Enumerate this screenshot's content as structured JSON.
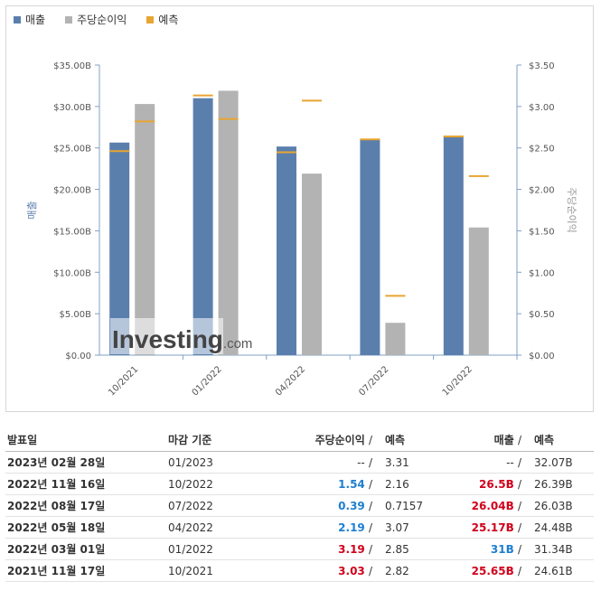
{
  "legend": {
    "revenue": "매출",
    "eps": "주당순이익",
    "forecast": "예측"
  },
  "colors": {
    "revenue": "#5b7fad",
    "eps": "#b3b3b3",
    "forecast": "#e8a531",
    "up": "#1e7fd0",
    "down": "#d0021b"
  },
  "chart_data": {
    "type": "bar",
    "categories": [
      "10/2021",
      "01/2022",
      "04/2022",
      "07/2022",
      "10/2022"
    ],
    "series": [
      {
        "name": "매출",
        "axis": "left",
        "values": [
          25.65,
          31.0,
          25.17,
          26.04,
          26.5
        ]
      },
      {
        "name": "주당순이익",
        "axis": "right",
        "values": [
          3.03,
          3.19,
          2.19,
          0.39,
          1.54
        ]
      }
    ],
    "forecast": {
      "name": "예측",
      "revenue": [
        24.61,
        31.34,
        24.48,
        26.03,
        26.39
      ],
      "eps": [
        2.82,
        2.85,
        3.07,
        0.7157,
        2.16
      ]
    },
    "left_axis": {
      "label": "매출",
      "ylim": [
        0,
        35
      ],
      "ticks": [
        "$0.00",
        "$5.00B",
        "$10.00B",
        "$15.00B",
        "$20.00B",
        "$25.00B",
        "$30.00B",
        "$35.00B"
      ]
    },
    "right_axis": {
      "label": "주당순이익",
      "ylim": [
        0,
        3.5
      ],
      "ticks": [
        "$0.00",
        "$0.50",
        "$1.00",
        "$1.50",
        "$2.00",
        "$2.50",
        "$3.00",
        "$3.50"
      ]
    },
    "watermark": "Investing.com"
  },
  "table": {
    "headers": {
      "date": "발표일",
      "period": "마감 기준",
      "eps": "주당순이익",
      "eps_sep": "/",
      "eps_forecast": "예측",
      "revenue": "매출",
      "rev_sep": "/",
      "rev_forecast": "예측"
    },
    "rows": [
      {
        "date": "2023년 02월 28일",
        "period": "01/2023",
        "eps": "--",
        "eps_sep": "/",
        "eps_forecast": "3.31",
        "revenue": "--",
        "rev_sep": "/",
        "rev_forecast": "32.07B",
        "eps_cls": "neutral",
        "rev_cls": "neutral"
      },
      {
        "date": "2022년 11월 16일",
        "period": "10/2022",
        "eps": "1.54",
        "eps_sep": "/",
        "eps_forecast": "2.16",
        "revenue": "26.5B",
        "rev_sep": "/",
        "rev_forecast": "26.39B",
        "eps_cls": "green",
        "rev_cls": "red"
      },
      {
        "date": "2022년 08월 17일",
        "period": "07/2022",
        "eps": "0.39",
        "eps_sep": "/",
        "eps_forecast": "0.7157",
        "revenue": "26.04B",
        "rev_sep": "/",
        "rev_forecast": "26.03B",
        "eps_cls": "green",
        "rev_cls": "red"
      },
      {
        "date": "2022년 05월 18일",
        "period": "04/2022",
        "eps": "2.19",
        "eps_sep": "/",
        "eps_forecast": "3.07",
        "revenue": "25.17B",
        "rev_sep": "/",
        "rev_forecast": "24.48B",
        "eps_cls": "green",
        "rev_cls": "red"
      },
      {
        "date": "2022년 03월 01일",
        "period": "01/2022",
        "eps": "3.19",
        "eps_sep": "/",
        "eps_forecast": "2.85",
        "revenue": "31B",
        "rev_sep": "/",
        "rev_forecast": "31.34B",
        "eps_cls": "red",
        "rev_cls": "green"
      },
      {
        "date": "2021년 11월 17일",
        "period": "10/2021",
        "eps": "3.03",
        "eps_sep": "/",
        "eps_forecast": "2.82",
        "revenue": "25.65B",
        "rev_sep": "/",
        "rev_forecast": "24.61B",
        "eps_cls": "red",
        "rev_cls": "red"
      }
    ]
  }
}
